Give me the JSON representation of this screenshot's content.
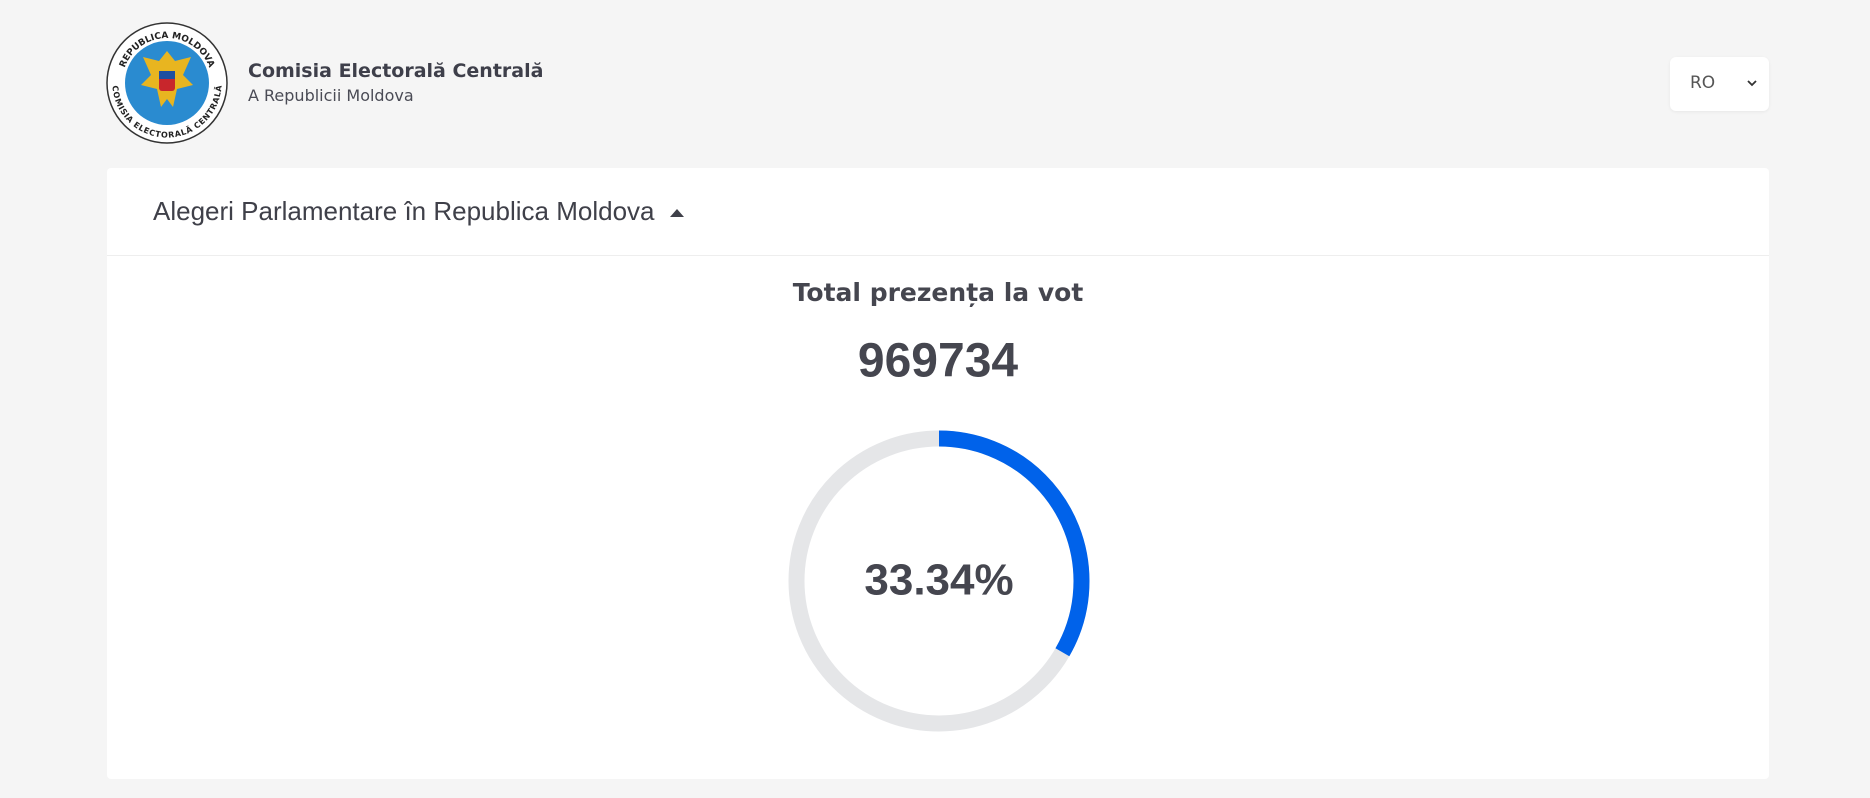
{
  "header": {
    "logo": {
      "top_text": "REPUBLICA MOLDOVA",
      "bottom_text": "COMISIA ELECTORALĂ CENTRALĂ"
    },
    "title": "Comisia Electorală Centrală",
    "subtitle": "A Republicii Moldova",
    "language": "RO"
  },
  "card": {
    "heading": "Alegeri Parlamentare în Republica Moldova",
    "turnout": {
      "title": "Total prezența la vot",
      "count": 969734,
      "percent": 33.34,
      "percent_label": "33.34%",
      "color": "#0062ea"
    }
  }
}
